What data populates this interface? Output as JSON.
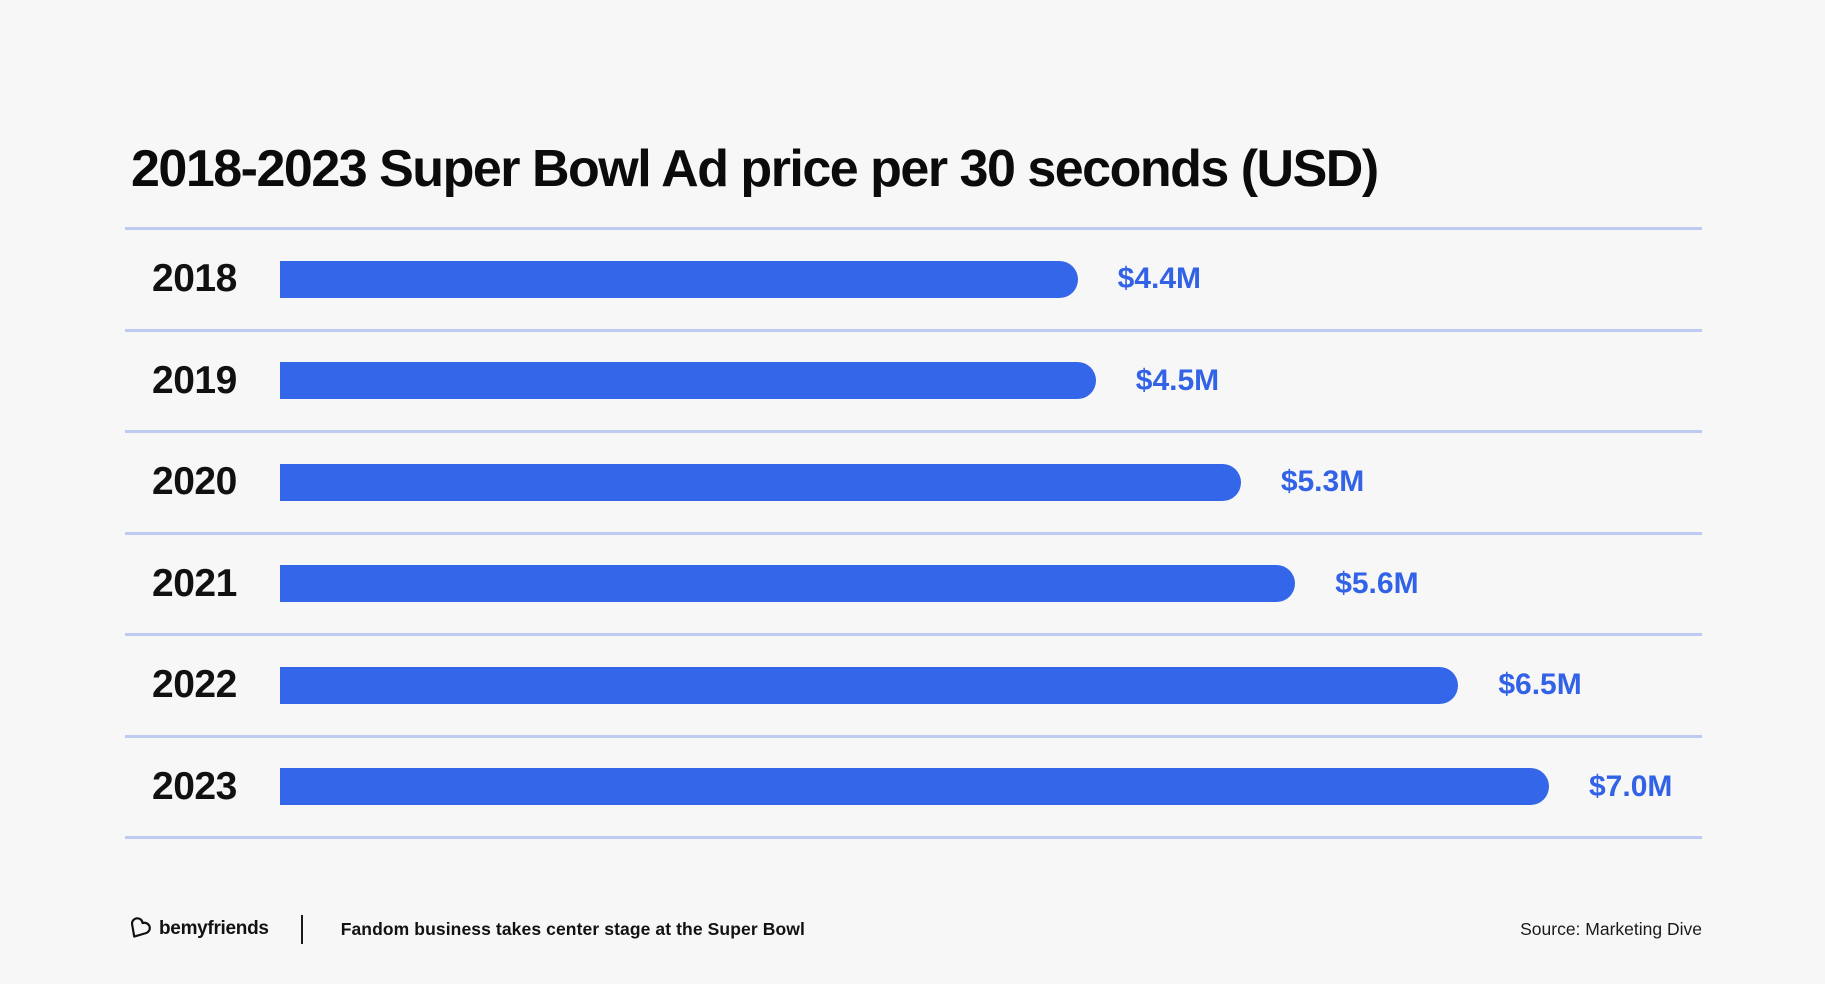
{
  "title": "2018-2023 Super Bowl Ad price per 30 seconds (USD)",
  "chart_data": {
    "type": "bar",
    "orientation": "horizontal",
    "title": "2018-2023 Super Bowl Ad price per 30 seconds (USD)",
    "categories": [
      "2018",
      "2019",
      "2020",
      "2021",
      "2022",
      "2023"
    ],
    "values": [
      4.4,
      4.5,
      5.3,
      5.6,
      6.5,
      7.0
    ],
    "value_labels": [
      "$4.4M",
      "$4.5M",
      "$5.3M",
      "$5.6M",
      "$6.5M",
      "$7.0M"
    ],
    "xlabel": "",
    "ylabel": "",
    "xlim": [
      0,
      7.0
    ],
    "grid": "horizontal-row-dividers",
    "legend": "none",
    "bar_color": "#3366E8",
    "value_label_color": "#3262E6",
    "divider_color": "#BDCBF0",
    "background_color": "#F7F7F8"
  },
  "footer": {
    "brand_name": "bemyfriends",
    "logo_icon": "heart-b-logo",
    "caption": "Fandom business takes center stage at the Super Bowl",
    "source": "Source: Marketing Dive"
  }
}
